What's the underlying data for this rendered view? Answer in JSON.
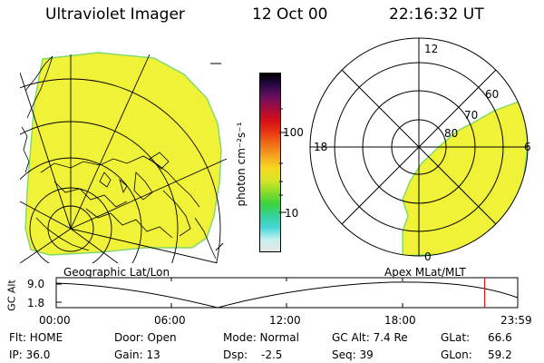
{
  "header": {
    "instrument": "Ultraviolet Imager",
    "date": "12 Oct 00",
    "time": "22:16:32 UT"
  },
  "colors": {
    "image_fill": "#f0f238",
    "image_edge": "#7fd86a",
    "colorbar": [
      "#e6e6e6",
      "#c4f0ee",
      "#49d6da",
      "#34d29a",
      "#3cd23c",
      "#8adc2c",
      "#d8e426",
      "#f6d820",
      "#f5a520",
      "#f07018",
      "#e83a12",
      "#d80e16",
      "#a80e3a",
      "#6a0e5e",
      "#2a0a48",
      "#000000"
    ]
  },
  "colorbar": {
    "unit_label": "photon cm⁻²s⁻¹",
    "tick_100": "100",
    "tick_10": "10"
  },
  "left_panel": {
    "caption": "Geographic Lat/Lon"
  },
  "right_panel": {
    "caption": "Apex MLat/MLT",
    "mlt_top": "12",
    "mlt_left": "18",
    "mlt_right": "6",
    "mlt_bottom": "0",
    "lat_60": "60",
    "lat_70": "70",
    "lat_80": "80"
  },
  "altitude_plot": {
    "ylabel": "GC Alt",
    "y_top": "9.0",
    "y_bottom": "1.8",
    "x_ticks": [
      "00:00",
      "06:00",
      "12:00",
      "18:00",
      "23:59"
    ],
    "current_time_fraction": 0.9284,
    "cursor_color": "#d81818"
  },
  "info": {
    "flt": "Flt: HOME",
    "door": "Door: Open",
    "mode": "Mode: Normal",
    "gc_alt": "GC Alt: 7.4 Re",
    "glat_label": "GLat:",
    "glat_value": "66.6",
    "ip": "IP: 36.0",
    "gain": "Gain: 13",
    "dsp_label": "Dsp:",
    "dsp_value": "-2.5",
    "seq": "Seq: 39",
    "glon_label": "GLon:",
    "glon_value": "59.2"
  }
}
